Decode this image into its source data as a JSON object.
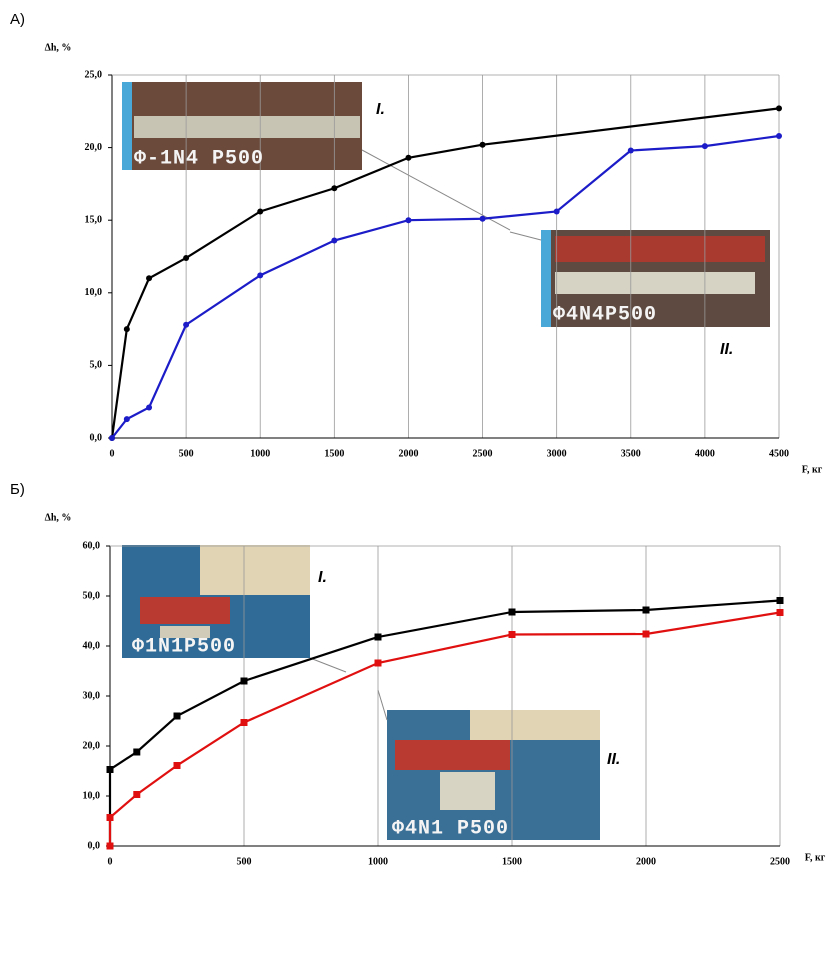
{
  "chart_data": [
    {
      "type": "line",
      "label": "А)",
      "ylabel": "Δh, %",
      "xlabel": "F, кг",
      "xlim": [
        0,
        4500
      ],
      "ylim": [
        0,
        25
      ],
      "xticks": [
        0,
        500,
        1000,
        1500,
        2000,
        2500,
        3000,
        3500,
        4000,
        4500
      ],
      "yticks": [
        {
          "value": 0,
          "label": "0,0"
        },
        {
          "value": 5,
          "label": "5,0"
        },
        {
          "value": 10,
          "label": "10,0"
        },
        {
          "value": 15,
          "label": "15,0"
        },
        {
          "value": 20,
          "label": "20,0"
        },
        {
          "value": 25,
          "label": "25,0"
        }
      ],
      "grid": "x",
      "marker": "circle",
      "series": [
        {
          "name": "I.",
          "color": "#000000",
          "x": [
            0,
            100,
            250,
            500,
            1000,
            1500,
            2000,
            2500,
            4500
          ],
          "values": [
            0,
            7.5,
            11.0,
            12.4,
            15.6,
            17.2,
            19.3,
            20.2,
            22.7
          ]
        },
        {
          "name": "II.",
          "color": "#1c1cc8",
          "x": [
            0,
            100,
            250,
            500,
            1000,
            1500,
            2000,
            2500,
            3000,
            3500,
            4000,
            4500
          ],
          "values": [
            0,
            1.3,
            2.1,
            7.8,
            11.2,
            13.6,
            15.0,
            15.1,
            15.6,
            19.8,
            20.1,
            20.8
          ]
        }
      ],
      "photo_labels": [
        "Ф-1N4 P500",
        "Ф4N4P500"
      ]
    },
    {
      "type": "line",
      "label": "Б)",
      "ylabel": "Δh, %",
      "xlabel": "F, кг",
      "xlim": [
        0,
        2500
      ],
      "ylim": [
        0,
        60
      ],
      "xticks": [
        0,
        500,
        1000,
        1500,
        2000,
        2500
      ],
      "yticks": [
        {
          "value": 0,
          "label": "0,0"
        },
        {
          "value": 10,
          "label": "10,0"
        },
        {
          "value": 20,
          "label": "20,0"
        },
        {
          "value": 30,
          "label": "30,0"
        },
        {
          "value": 40,
          "label": "40,0"
        },
        {
          "value": 50,
          "label": "50,0"
        },
        {
          "value": 60,
          "label": "60,0"
        }
      ],
      "grid": "x",
      "marker": "square",
      "series": [
        {
          "name": "I.",
          "color": "#000000",
          "x": [
            0,
            0,
            100,
            250,
            500,
            1000,
            1500,
            2000,
            2500
          ],
          "values": [
            0,
            15.3,
            18.8,
            26.0,
            33.0,
            41.8,
            46.8,
            47.2,
            49.1
          ]
        },
        {
          "name": "II.",
          "color": "#e01010",
          "x": [
            0,
            0,
            100,
            250,
            500,
            1000,
            1500,
            2000,
            2500
          ],
          "values": [
            0,
            5.7,
            10.3,
            16.1,
            24.7,
            36.6,
            42.3,
            42.4,
            46.7
          ]
        }
      ],
      "photo_labels": [
        "Ф1N1P500",
        "Ф4N1 P500"
      ]
    }
  ]
}
